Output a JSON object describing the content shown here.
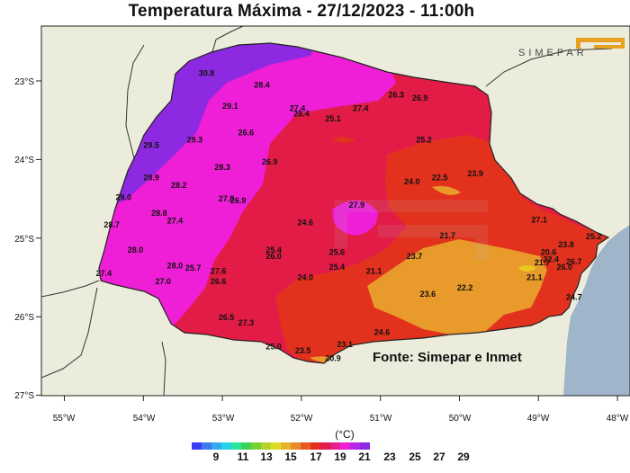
{
  "title": "Temperatura Máxima - 27/12/2023 - 11:00h",
  "brand": "SIMEPAR",
  "source": "Fonte: Simepar e Inmet",
  "colors": {
    "land": "#ececdc",
    "ocean": "#9fb5c9",
    "c19_21": "#e8c81e",
    "c21_23": "#e89a2a",
    "c23_25": "#e2321e",
    "c25_27": "#e21c46",
    "c27_29": "#ee1fd6",
    "c29_31": "#8e29e2"
  },
  "axes": {
    "x_ticks": [
      "55°W",
      "54°W",
      "53°W",
      "52°W",
      "51°W",
      "50°W",
      "49°W",
      "48°W"
    ],
    "y_ticks": [
      "23°S",
      "24°S",
      "25°S",
      "26°S",
      "27°S"
    ]
  },
  "legend": {
    "unit": "(°C)",
    "tick_labels": [
      "9",
      "11",
      "13",
      "15",
      "17",
      "19",
      "21",
      "23",
      "25",
      "27",
      "29"
    ],
    "colors": [
      "#3c3cf0",
      "#3c78f0",
      "#32aaf0",
      "#28d2e6",
      "#28e6a0",
      "#3cd25a",
      "#78d232",
      "#b4d228",
      "#dcdc28",
      "#e6b428",
      "#e68c28",
      "#e65a1e",
      "#e2321e",
      "#e21c46",
      "#e61e8c",
      "#ee1fd6",
      "#b428e6",
      "#8e29e2"
    ]
  },
  "map_data": {
    "stations": [
      {
        "value": "30.8",
        "lon": -53.2,
        "lat": -22.9
      },
      {
        "value": "28.4",
        "lon": -52.5,
        "lat": -23.05
      },
      {
        "value": "29.1",
        "lon": -52.9,
        "lat": -23.32
      },
      {
        "value": "27.4",
        "lon": -52.05,
        "lat": -23.35
      },
      {
        "value": "28.4",
        "lon": -52.0,
        "lat": -23.42
      },
      {
        "value": "25.1",
        "lon": -51.6,
        "lat": -23.48
      },
      {
        "value": "27.4",
        "lon": -51.25,
        "lat": -23.35
      },
      {
        "value": "26.3",
        "lon": -50.8,
        "lat": -23.18
      },
      {
        "value": "26.9",
        "lon": -50.5,
        "lat": -23.22
      },
      {
        "value": "29.5",
        "lon": -53.9,
        "lat": -23.82
      },
      {
        "value": "29.3",
        "lon": -53.35,
        "lat": -23.75
      },
      {
        "value": "26.6",
        "lon": -52.7,
        "lat": -23.66
      },
      {
        "value": "25.2",
        "lon": -50.45,
        "lat": -23.75
      },
      {
        "value": "28.3",
        "lon": -53.0,
        "lat": -24.1
      },
      {
        "value": "26.9",
        "lon": -52.4,
        "lat": -24.03
      },
      {
        "value": "28.9",
        "lon": -53.9,
        "lat": -24.23
      },
      {
        "value": "28.2",
        "lon": -53.55,
        "lat": -24.33
      },
      {
        "value": "24.0",
        "lon": -50.6,
        "lat": -24.28
      },
      {
        "value": "22.5",
        "lon": -50.25,
        "lat": -24.23
      },
      {
        "value": "23.9",
        "lon": -49.8,
        "lat": -24.18
      },
      {
        "value": "29.0",
        "lon": -54.25,
        "lat": -24.48
      },
      {
        "value": "27.8",
        "lon": -52.95,
        "lat": -24.5
      },
      {
        "value": "26.9",
        "lon": -52.8,
        "lat": -24.52
      },
      {
        "value": "27.9",
        "lon": -51.3,
        "lat": -24.58
      },
      {
        "value": "28.8",
        "lon": -53.8,
        "lat": -24.68
      },
      {
        "value": "27.4",
        "lon": -53.6,
        "lat": -24.78
      },
      {
        "value": "27.1",
        "lon": -48.99,
        "lat": -24.77
      },
      {
        "value": "28.7",
        "lon": -54.4,
        "lat": -24.83
      },
      {
        "value": "24.6",
        "lon": -51.95,
        "lat": -24.8
      },
      {
        "value": "21.7",
        "lon": -50.15,
        "lat": -24.97
      },
      {
        "value": "28.0",
        "lon": -54.1,
        "lat": -25.15
      },
      {
        "value": "25.4",
        "lon": -52.35,
        "lat": -25.15
      },
      {
        "value": "25.6",
        "lon": -51.55,
        "lat": -25.18
      },
      {
        "value": "26.0",
        "lon": -52.35,
        "lat": -25.23
      },
      {
        "value": "23.7",
        "lon": -50.57,
        "lat": -25.23
      },
      {
        "value": "20.6",
        "lon": -48.87,
        "lat": -25.18
      },
      {
        "value": "23.8",
        "lon": -48.65,
        "lat": -25.08
      },
      {
        "value": "25.2",
        "lon": -48.3,
        "lat": -24.98
      },
      {
        "value": "22.4",
        "lon": -48.84,
        "lat": -25.27
      },
      {
        "value": "21.7",
        "lon": -48.95,
        "lat": -25.31
      },
      {
        "value": "26.7",
        "lon": -48.55,
        "lat": -25.3
      },
      {
        "value": "26.0",
        "lon": -48.67,
        "lat": -25.37
      },
      {
        "value": "28.0",
        "lon": -53.6,
        "lat": -25.35
      },
      {
        "value": "25.7",
        "lon": -53.37,
        "lat": -25.38
      },
      {
        "value": "27.6",
        "lon": -53.05,
        "lat": -25.42
      },
      {
        "value": "25.4",
        "lon": -51.55,
        "lat": -25.37
      },
      {
        "value": "21.1",
        "lon": -51.08,
        "lat": -25.42
      },
      {
        "value": "27.4",
        "lon": -54.5,
        "lat": -25.45
      },
      {
        "value": "27.0",
        "lon": -53.75,
        "lat": -25.55
      },
      {
        "value": "26.6",
        "lon": -53.05,
        "lat": -25.55
      },
      {
        "value": "24.0",
        "lon": -51.95,
        "lat": -25.5
      },
      {
        "value": "21.1",
        "lon": -49.05,
        "lat": -25.5
      },
      {
        "value": "22.2",
        "lon": -49.93,
        "lat": -25.63
      },
      {
        "value": "23.6",
        "lon": -50.4,
        "lat": -25.71
      },
      {
        "value": "24.7",
        "lon": -48.55,
        "lat": -25.75
      },
      {
        "value": "26.5",
        "lon": -52.95,
        "lat": -26.01
      },
      {
        "value": "27.3",
        "lon": -52.7,
        "lat": -26.08
      },
      {
        "value": "24.6",
        "lon": -50.98,
        "lat": -26.2
      },
      {
        "value": "25.0",
        "lon": -52.35,
        "lat": -26.38
      },
      {
        "value": "23.5",
        "lon": -51.98,
        "lat": -26.43
      },
      {
        "value": "23.1",
        "lon": -51.45,
        "lat": -26.35
      },
      {
        "value": "20.9",
        "lon": -51.6,
        "lat": -26.53
      }
    ]
  }
}
